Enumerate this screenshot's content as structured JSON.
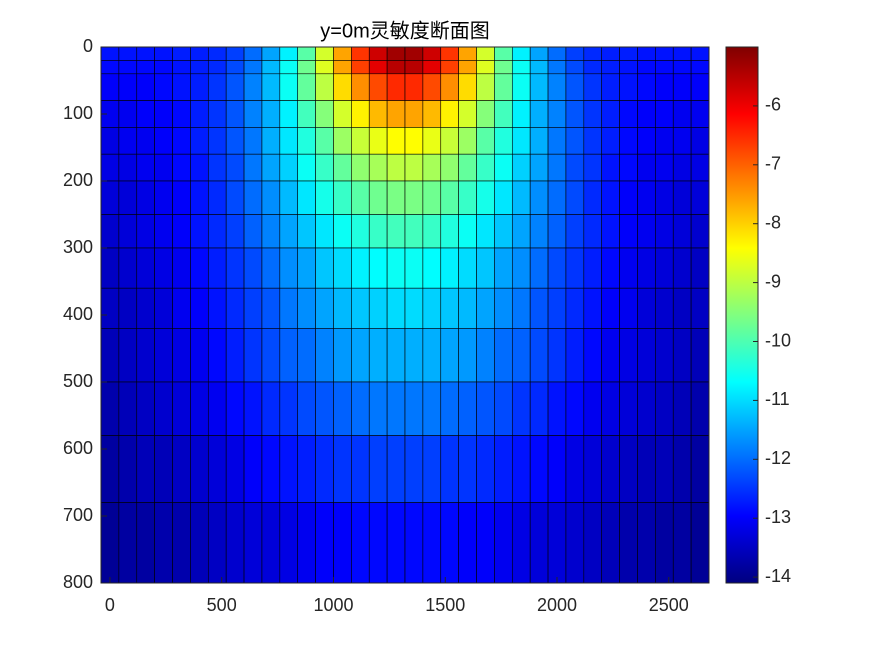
{
  "chart_data": {
    "type": "heatmap",
    "title": "y=0m灵敏度断面图",
    "colormap": "jet",
    "x_edges": [
      -40,
      40,
      120,
      200,
      280,
      360,
      440,
      520,
      600,
      680,
      760,
      840,
      920,
      1000,
      1080,
      1160,
      1240,
      1320,
      1400,
      1480,
      1560,
      1640,
      1720,
      1800,
      1880,
      1960,
      2040,
      2120,
      2200,
      2280,
      2360,
      2440,
      2520,
      2600,
      2680
    ],
    "y_edges": [
      0,
      20,
      40,
      80,
      120,
      160,
      200,
      250,
      300,
      360,
      420,
      500,
      580,
      680,
      800
    ],
    "values": [
      [
        -12.8,
        -12.8,
        -12.8,
        -12.8,
        -12.7,
        -12.7,
        -12.6,
        -12.4,
        -12.0,
        -11.5,
        -10.8,
        -9.9,
        -8.8,
        -7.6,
        -6.6,
        -5.7,
        -5.3,
        -5.3,
        -5.7,
        -6.6,
        -7.6,
        -8.8,
        -9.9,
        -10.8,
        -11.5,
        -12.0,
        -12.4,
        -12.6,
        -12.7,
        -12.7,
        -12.8,
        -12.8,
        -12.8,
        -12.8
      ],
      [
        -12.9,
        -12.9,
        -12.9,
        -12.9,
        -12.8,
        -12.7,
        -12.6,
        -12.3,
        -11.9,
        -11.3,
        -10.6,
        -9.7,
        -8.7,
        -7.6,
        -6.7,
        -5.9,
        -5.5,
        -5.5,
        -5.9,
        -6.7,
        -7.6,
        -8.7,
        -9.7,
        -10.6,
        -11.3,
        -11.9,
        -12.3,
        -12.6,
        -12.7,
        -12.8,
        -12.9,
        -12.9,
        -12.9,
        -12.9
      ],
      [
        -13.0,
        -13.0,
        -13.0,
        -12.9,
        -12.8,
        -12.7,
        -12.5,
        -12.2,
        -11.8,
        -11.3,
        -10.6,
        -9.8,
        -9.0,
        -8.1,
        -7.4,
        -6.8,
        -6.5,
        -6.5,
        -6.8,
        -7.4,
        -8.1,
        -9.0,
        -9.8,
        -10.6,
        -11.3,
        -11.8,
        -12.2,
        -12.5,
        -12.7,
        -12.8,
        -12.9,
        -13.0,
        -13.0,
        -13.0
      ],
      [
        -13.1,
        -13.1,
        -13.0,
        -13.0,
        -12.9,
        -12.7,
        -12.5,
        -12.2,
        -11.8,
        -11.4,
        -10.8,
        -10.1,
        -9.5,
        -8.8,
        -8.3,
        -7.8,
        -7.6,
        -7.6,
        -7.8,
        -8.3,
        -8.8,
        -9.5,
        -10.1,
        -10.8,
        -11.4,
        -11.8,
        -12.2,
        -12.5,
        -12.7,
        -12.9,
        -13.0,
        -13.0,
        -13.1,
        -13.1
      ],
      [
        -13.2,
        -13.1,
        -13.1,
        -13.0,
        -12.9,
        -12.7,
        -12.5,
        -12.2,
        -11.9,
        -11.4,
        -10.9,
        -10.4,
        -9.9,
        -9.3,
        -8.9,
        -8.6,
        -8.4,
        -8.4,
        -8.6,
        -8.9,
        -9.3,
        -9.9,
        -10.4,
        -10.9,
        -11.4,
        -11.9,
        -12.2,
        -12.5,
        -12.7,
        -12.9,
        -13.0,
        -13.1,
        -13.1,
        -13.2
      ],
      [
        -13.2,
        -13.2,
        -13.1,
        -13.1,
        -12.9,
        -12.8,
        -12.5,
        -12.3,
        -11.9,
        -11.5,
        -11.1,
        -10.6,
        -10.2,
        -9.8,
        -9.4,
        -9.2,
        -9.0,
        -9.0,
        -9.2,
        -9.4,
        -9.8,
        -10.2,
        -10.6,
        -11.1,
        -11.5,
        -11.9,
        -12.3,
        -12.5,
        -12.8,
        -12.9,
        -13.1,
        -13.1,
        -13.2,
        -13.2
      ],
      [
        -13.3,
        -13.3,
        -13.2,
        -13.1,
        -13.0,
        -12.8,
        -12.6,
        -12.3,
        -12.0,
        -11.7,
        -11.3,
        -10.9,
        -10.5,
        -10.2,
        -9.9,
        -9.7,
        -9.6,
        -9.6,
        -9.7,
        -9.9,
        -10.2,
        -10.5,
        -10.9,
        -11.3,
        -11.7,
        -12.0,
        -12.3,
        -12.6,
        -12.8,
        -13.0,
        -13.1,
        -13.2,
        -13.3,
        -13.3
      ],
      [
        -13.4,
        -13.3,
        -13.2,
        -13.1,
        -13.0,
        -12.8,
        -12.6,
        -12.4,
        -12.1,
        -11.8,
        -11.5,
        -11.2,
        -10.9,
        -10.6,
        -10.4,
        -10.2,
        -10.1,
        -10.1,
        -10.2,
        -10.4,
        -10.6,
        -10.9,
        -11.2,
        -11.5,
        -11.8,
        -12.1,
        -12.4,
        -12.6,
        -12.8,
        -13.0,
        -13.1,
        -13.2,
        -13.3,
        -13.4
      ],
      [
        -13.5,
        -13.4,
        -13.3,
        -13.2,
        -13.1,
        -12.9,
        -12.7,
        -12.5,
        -12.3,
        -12.0,
        -11.7,
        -11.5,
        -11.2,
        -11.0,
        -10.8,
        -10.7,
        -10.6,
        -10.6,
        -10.7,
        -10.8,
        -11.0,
        -11.2,
        -11.5,
        -11.7,
        -12.0,
        -12.3,
        -12.5,
        -12.7,
        -12.9,
        -13.1,
        -13.2,
        -13.3,
        -13.4,
        -13.5
      ],
      [
        -13.5,
        -13.5,
        -13.4,
        -13.3,
        -13.1,
        -13.0,
        -12.8,
        -12.6,
        -12.4,
        -12.2,
        -11.9,
        -11.7,
        -11.5,
        -11.3,
        -11.2,
        -11.1,
        -11.0,
        -11.0,
        -11.1,
        -11.2,
        -11.3,
        -11.5,
        -11.7,
        -11.9,
        -12.2,
        -12.4,
        -12.6,
        -12.8,
        -13.0,
        -13.1,
        -13.3,
        -13.4,
        -13.5,
        -13.5
      ],
      [
        -13.6,
        -13.5,
        -13.4,
        -13.3,
        -13.2,
        -13.1,
        -12.9,
        -12.7,
        -12.5,
        -12.3,
        -12.1,
        -12.0,
        -11.8,
        -11.6,
        -11.5,
        -11.4,
        -11.4,
        -11.4,
        -11.4,
        -11.5,
        -11.6,
        -11.8,
        -12.0,
        -12.1,
        -12.3,
        -12.5,
        -12.7,
        -12.9,
        -13.1,
        -13.2,
        -13.3,
        -13.4,
        -13.5,
        -13.6
      ],
      [
        -13.7,
        -13.6,
        -13.5,
        -13.4,
        -13.3,
        -13.2,
        -13.1,
        -12.9,
        -12.8,
        -12.6,
        -12.5,
        -12.3,
        -12.2,
        -12.1,
        -12.0,
        -11.9,
        -11.9,
        -11.9,
        -11.9,
        -12.0,
        -12.1,
        -12.2,
        -12.3,
        -12.5,
        -12.6,
        -12.8,
        -12.9,
        -13.1,
        -13.2,
        -13.3,
        -13.4,
        -13.5,
        -13.6,
        -13.7
      ],
      [
        -13.8,
        -13.7,
        -13.6,
        -13.6,
        -13.5,
        -13.4,
        -13.3,
        -13.2,
        -13.0,
        -12.9,
        -12.8,
        -12.7,
        -12.6,
        -12.5,
        -12.5,
        -12.4,
        -12.4,
        -12.4,
        -12.4,
        -12.5,
        -12.5,
        -12.6,
        -12.7,
        -12.8,
        -12.9,
        -13.0,
        -13.2,
        -13.3,
        -13.4,
        -13.5,
        -13.6,
        -13.6,
        -13.7,
        -13.8
      ],
      [
        -13.9,
        -13.8,
        -13.8,
        -13.7,
        -13.7,
        -13.6,
        -13.5,
        -13.4,
        -13.3,
        -13.3,
        -13.2,
        -13.1,
        -13.0,
        -13.0,
        -12.9,
        -12.9,
        -12.9,
        -12.9,
        -12.9,
        -12.9,
        -13.0,
        -13.0,
        -13.1,
        -13.2,
        -13.3,
        -13.3,
        -13.4,
        -13.5,
        -13.6,
        -13.7,
        -13.7,
        -13.8,
        -13.8,
        -13.9
      ]
    ],
    "xlim": [
      -40,
      2680
    ],
    "xticks": [
      0,
      500,
      1000,
      1500,
      2000,
      2500
    ],
    "ylim": [
      0,
      800
    ],
    "yticks": [
      0,
      100,
      200,
      300,
      400,
      500,
      600,
      700,
      800
    ],
    "y_reversed": true,
    "clim": [
      -14.1,
      -5
    ],
    "cticks": [
      -14,
      -13,
      -12,
      -11,
      -10,
      -9,
      -8,
      -7,
      -6
    ]
  }
}
